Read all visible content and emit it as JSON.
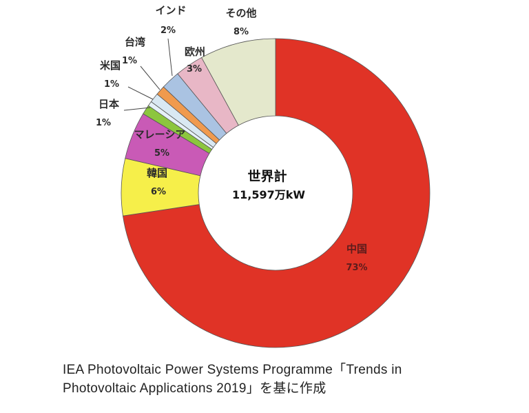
{
  "chart_data": {
    "type": "pie",
    "donut": true,
    "center_title": "世界計",
    "center_value": "11,597万kW",
    "slices": [
      {
        "name": "中国",
        "label": "73%",
        "value": 73,
        "color": "#e03326"
      },
      {
        "name": "韓国",
        "label": "6%",
        "value": 6,
        "color": "#f6ef4a"
      },
      {
        "name": "マレーシア",
        "label": "5%",
        "value": 5,
        "color": "#c95ab6"
      },
      {
        "name": "日本",
        "label": "1%",
        "value": 1,
        "color": "#8cc63e"
      },
      {
        "name": "",
        "label": "",
        "value": 0.5,
        "color": "#e6f1f8"
      },
      {
        "name": "米国",
        "label": "1%",
        "value": 1,
        "color": "#d9e8f2"
      },
      {
        "name": "台湾",
        "label": "1%",
        "value": 1,
        "color": "#f09a4e"
      },
      {
        "name": "インド",
        "label": "2%",
        "value": 2,
        "color": "#aac3e2"
      },
      {
        "name": "欧州",
        "label": "3%",
        "value": 3,
        "color": "#e8b7c6"
      },
      {
        "name": "その他",
        "label": "8%",
        "value": 8,
        "color": "#e4e8cc"
      }
    ]
  },
  "caption": {
    "line1": "IEA Photovoltaic Power Systems Programme「Trends in",
    "line2": "Photovoltaic Applications 2019」を基に作成"
  }
}
